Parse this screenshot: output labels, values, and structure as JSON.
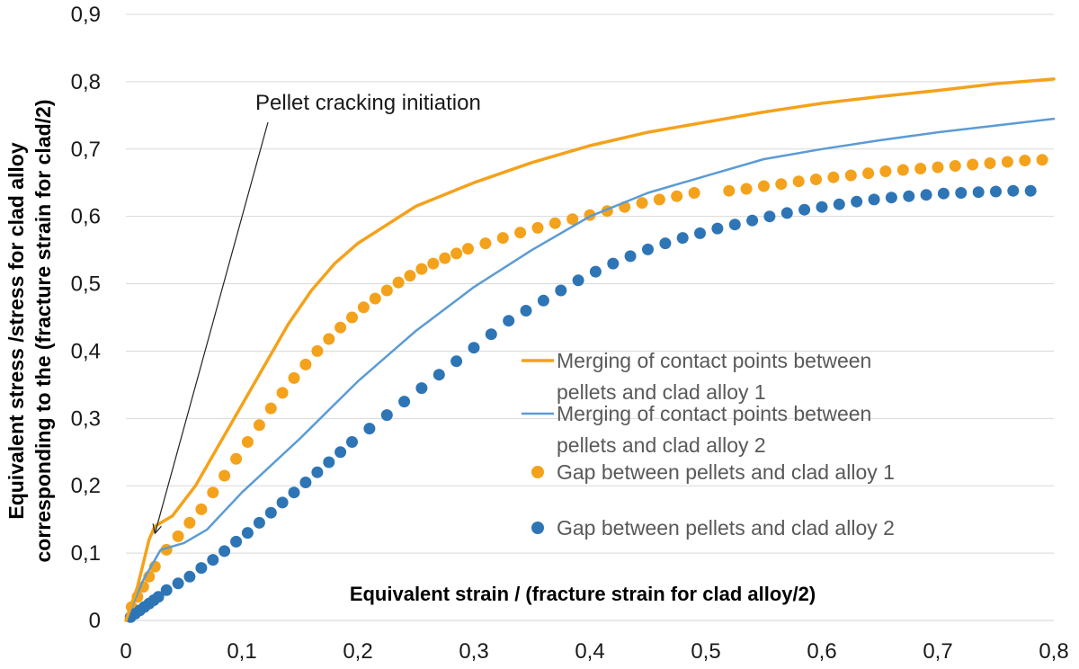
{
  "chart_data": {
    "type": "line",
    "title": "",
    "xlabel": "Equivalent strain / (fracture strain for clad alloy/2)",
    "ylabel_line1": "Equivalent stress /stress for clad alloy",
    "ylabel_line2": "corresponding to the (fracture strain for clad/2)",
    "xlim": [
      0,
      0.8
    ],
    "ylim": [
      0,
      0.9
    ],
    "x_ticks": [
      "0",
      "0,1",
      "0,2",
      "0,3",
      "0,4",
      "0,5",
      "0,6",
      "0,7",
      "0,8"
    ],
    "y_ticks": [
      "0",
      "0,1",
      "0,2",
      "0,3",
      "0,4",
      "0,5",
      "0,6",
      "0,7",
      "0,8",
      "0,9"
    ],
    "grid": "horizontal",
    "annotation": {
      "text": "Pellet cracking initiation",
      "points_to": [
        0.025,
        0.14
      ]
    },
    "series": [
      {
        "name_line1": "Merging of contact points between",
        "name_line2": "pellets and clad alloy 1",
        "style": "line",
        "color": "#F4A21B",
        "points": [
          [
            0,
            0
          ],
          [
            0.01,
            0.05
          ],
          [
            0.02,
            0.12
          ],
          [
            0.025,
            0.14
          ],
          [
            0.04,
            0.155
          ],
          [
            0.06,
            0.2
          ],
          [
            0.08,
            0.26
          ],
          [
            0.1,
            0.32
          ],
          [
            0.12,
            0.38
          ],
          [
            0.14,
            0.44
          ],
          [
            0.16,
            0.49
          ],
          [
            0.18,
            0.53
          ],
          [
            0.2,
            0.56
          ],
          [
            0.25,
            0.615
          ],
          [
            0.3,
            0.65
          ],
          [
            0.35,
            0.68
          ],
          [
            0.4,
            0.705
          ],
          [
            0.45,
            0.725
          ],
          [
            0.5,
            0.74
          ],
          [
            0.55,
            0.755
          ],
          [
            0.6,
            0.768
          ],
          [
            0.65,
            0.778
          ],
          [
            0.7,
            0.787
          ],
          [
            0.75,
            0.797
          ],
          [
            0.8,
            0.804
          ]
        ]
      },
      {
        "name_line1": "Merging of contact points between",
        "name_line2": "pellets and clad alloy 2",
        "style": "line",
        "color": "#5B9BD5",
        "points": [
          [
            0,
            0
          ],
          [
            0.015,
            0.06
          ],
          [
            0.03,
            0.105
          ],
          [
            0.05,
            0.115
          ],
          [
            0.07,
            0.135
          ],
          [
            0.1,
            0.19
          ],
          [
            0.15,
            0.27
          ],
          [
            0.2,
            0.355
          ],
          [
            0.25,
            0.43
          ],
          [
            0.3,
            0.495
          ],
          [
            0.35,
            0.55
          ],
          [
            0.4,
            0.6
          ],
          [
            0.45,
            0.635
          ],
          [
            0.5,
            0.66
          ],
          [
            0.55,
            0.685
          ],
          [
            0.6,
            0.7
          ],
          [
            0.65,
            0.713
          ],
          [
            0.7,
            0.725
          ],
          [
            0.75,
            0.735
          ],
          [
            0.8,
            0.745
          ]
        ]
      },
      {
        "name": "Gap between pellets and clad alloy 1",
        "style": "markers",
        "color": "#F4A21B",
        "x": [
          0.005,
          0.01,
          0.015,
          0.02,
          0.025,
          0.035,
          0.045,
          0.055,
          0.065,
          0.075,
          0.085,
          0.095,
          0.105,
          0.115,
          0.125,
          0.135,
          0.145,
          0.155,
          0.165,
          0.175,
          0.185,
          0.195,
          0.205,
          0.215,
          0.225,
          0.235,
          0.245,
          0.255,
          0.265,
          0.275,
          0.285,
          0.295,
          0.31,
          0.325,
          0.34,
          0.355,
          0.37,
          0.385,
          0.4,
          0.415,
          0.43,
          0.445,
          0.46,
          0.475,
          0.49,
          0.52,
          0.535,
          0.55,
          0.565,
          0.58,
          0.595,
          0.61,
          0.625,
          0.64,
          0.655,
          0.67,
          0.685,
          0.7,
          0.715,
          0.73,
          0.745,
          0.76,
          0.775,
          0.79
        ],
        "y": [
          0.02,
          0.035,
          0.05,
          0.065,
          0.08,
          0.105,
          0.125,
          0.145,
          0.165,
          0.19,
          0.215,
          0.24,
          0.265,
          0.29,
          0.315,
          0.338,
          0.36,
          0.38,
          0.4,
          0.418,
          0.435,
          0.45,
          0.465,
          0.478,
          0.49,
          0.502,
          0.512,
          0.522,
          0.53,
          0.538,
          0.545,
          0.552,
          0.56,
          0.568,
          0.576,
          0.583,
          0.59,
          0.596,
          0.602,
          0.608,
          0.614,
          0.62,
          0.625,
          0.63,
          0.635,
          0.638,
          0.641,
          0.645,
          0.648,
          0.652,
          0.655,
          0.658,
          0.661,
          0.664,
          0.667,
          0.669,
          0.671,
          0.673,
          0.675,
          0.677,
          0.679,
          0.681,
          0.683,
          0.684
        ]
      },
      {
        "name": "Gap between pellets and clad alloy 2",
        "style": "markers",
        "color": "#2E75B6",
        "x": [
          0.004,
          0.008,
          0.012,
          0.016,
          0.02,
          0.024,
          0.028,
          0.035,
          0.045,
          0.055,
          0.065,
          0.075,
          0.085,
          0.095,
          0.105,
          0.115,
          0.125,
          0.135,
          0.145,
          0.155,
          0.165,
          0.175,
          0.185,
          0.195,
          0.21,
          0.225,
          0.24,
          0.255,
          0.27,
          0.285,
          0.3,
          0.315,
          0.33,
          0.345,
          0.36,
          0.375,
          0.39,
          0.405,
          0.42,
          0.435,
          0.45,
          0.465,
          0.48,
          0.495,
          0.51,
          0.525,
          0.54,
          0.555,
          0.57,
          0.585,
          0.6,
          0.615,
          0.63,
          0.645,
          0.66,
          0.675,
          0.69,
          0.705,
          0.72,
          0.735,
          0.75,
          0.765,
          0.78
        ],
        "y": [
          0.005,
          0.01,
          0.015,
          0.02,
          0.025,
          0.03,
          0.035,
          0.045,
          0.055,
          0.065,
          0.078,
          0.09,
          0.103,
          0.117,
          0.13,
          0.145,
          0.16,
          0.175,
          0.19,
          0.205,
          0.22,
          0.235,
          0.25,
          0.265,
          0.285,
          0.305,
          0.325,
          0.345,
          0.365,
          0.385,
          0.405,
          0.425,
          0.445,
          0.46,
          0.475,
          0.49,
          0.505,
          0.518,
          0.53,
          0.541,
          0.551,
          0.56,
          0.568,
          0.575,
          0.582,
          0.588,
          0.594,
          0.6,
          0.605,
          0.61,
          0.614,
          0.618,
          0.622,
          0.625,
          0.628,
          0.63,
          0.632,
          0.634,
          0.635,
          0.636,
          0.637,
          0.638,
          0.638
        ]
      }
    ]
  }
}
